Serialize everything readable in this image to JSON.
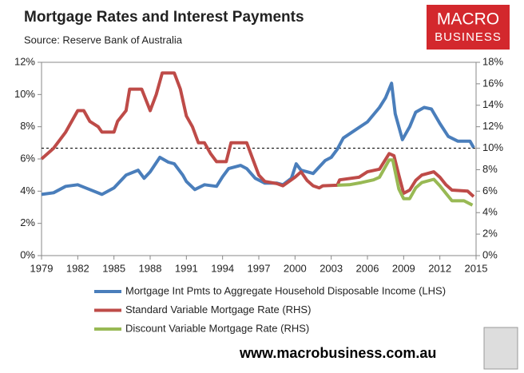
{
  "chart_data": {
    "type": "line",
    "title": "Mortgage Rates and Interest Payments",
    "subtitle": "Source: Reserve Bank of Australia",
    "logo": [
      "MACRO",
      "BUSINESS"
    ],
    "footer": "www.macrobusiness.com.au",
    "xlim": [
      1979,
      2015
    ],
    "xticks": [
      1979,
      1982,
      1985,
      1988,
      1991,
      1994,
      1997,
      2000,
      2003,
      2006,
      2009,
      2012,
      2015
    ],
    "ylim": [
      0,
      12
    ],
    "yticks": [
      {
        "value": 0,
        "label": "0%"
      },
      {
        "value": 2,
        "label": "2%"
      },
      {
        "value": 4,
        "label": "4%"
      },
      {
        "value": 6,
        "label": "6%"
      },
      {
        "value": 8,
        "label": "8%"
      },
      {
        "value": 10,
        "label": "10%"
      },
      {
        "value": 12,
        "label": "12%"
      }
    ],
    "y2lim": [
      0,
      18
    ],
    "y2ticks": [
      {
        "value": 0,
        "label": "0%"
      },
      {
        "value": 2,
        "label": "2%"
      },
      {
        "value": 4,
        "label": "4%"
      },
      {
        "value": 6,
        "label": "6%"
      },
      {
        "value": 8,
        "label": "8%"
      },
      {
        "value": 10,
        "label": "10%"
      },
      {
        "value": 12,
        "label": "12%"
      },
      {
        "value": 14,
        "label": "14%"
      },
      {
        "value": 16,
        "label": "16%"
      },
      {
        "value": 18,
        "label": "18%"
      }
    ],
    "reference_line": {
      "axis": "y2",
      "value": 10,
      "color": "#000000",
      "dashed": true
    },
    "legend": "bottom",
    "series": [
      {
        "name": "Mortgage Int Pmts to Aggregate Household Disposable Income (LHS)",
        "color": "#4a7ebb",
        "axis": "y",
        "x": [
          1979,
          1980,
          1981,
          1982,
          1983,
          1984,
          1985,
          1986,
          1987,
          1987.5,
          1988,
          1988.8,
          1989.5,
          1990,
          1990.7,
          1991,
          1991.7,
          1992.5,
          1993.5,
          1994,
          1994.5,
          1995.5,
          1996,
          1996.7,
          1997.5,
          1998.5,
          1999,
          1999.7,
          2000.1,
          2000.5,
          2001,
          2001.5,
          2002.5,
          2003,
          2003.5,
          2004,
          2005,
          2006,
          2007,
          2007.5,
          2008,
          2008.3,
          2008.9,
          2009.5,
          2010,
          2010.7,
          2011.3,
          2012,
          2012.7,
          2013.5,
          2014.5,
          2014.8
        ],
        "values": [
          3.8,
          3.9,
          4.3,
          4.4,
          4.1,
          3.8,
          4.2,
          5.0,
          5.3,
          4.8,
          5.2,
          6.1,
          5.8,
          5.7,
          5.0,
          4.6,
          4.1,
          4.4,
          4.3,
          4.9,
          5.4,
          5.6,
          5.4,
          4.8,
          4.5,
          4.5,
          4.4,
          4.8,
          5.7,
          5.3,
          5.2,
          5.1,
          5.9,
          6.1,
          6.6,
          7.3,
          7.8,
          8.3,
          9.2,
          9.8,
          10.7,
          8.8,
          7.2,
          8.0,
          8.9,
          9.2,
          9.1,
          8.2,
          7.4,
          7.1,
          7.1,
          6.7
        ]
      },
      {
        "name": "Standard Variable Mortgage Rate (RHS)",
        "color": "#be4b48",
        "axis": "y2",
        "x": [
          1979,
          1980,
          1981,
          1982,
          1982.5,
          1983,
          1983.7,
          1984,
          1985,
          1985.3,
          1986,
          1986.3,
          1987.3,
          1988,
          1988.5,
          1989,
          1990,
          1990.5,
          1991,
          1991.5,
          1992,
          1992.5,
          1993,
          1993.5,
          1994.3,
          1994.7,
          1996,
          1996.5,
          1997,
          1997.5,
          1998.5,
          1999,
          2000,
          2000.5,
          2001,
          2001.5,
          2002,
          2002.3,
          2003.5,
          2003.7,
          2005.3,
          2006,
          2007,
          2007.8,
          2008.2,
          2008.6,
          2009,
          2009.5,
          2010,
          2010.5,
          2011.5,
          2012,
          2012.5,
          2013,
          2014.3,
          2014.8
        ],
        "values": [
          9.0,
          10.0,
          11.5,
          13.5,
          13.5,
          12.5,
          12.0,
          11.5,
          11.5,
          12.5,
          13.5,
          15.5,
          15.5,
          13.5,
          15.0,
          17.0,
          17.0,
          15.5,
          13.0,
          12.0,
          10.5,
          10.5,
          9.5,
          8.75,
          8.75,
          10.5,
          10.5,
          9.0,
          7.5,
          6.9,
          6.7,
          6.5,
          7.3,
          7.8,
          7.0,
          6.5,
          6.3,
          6.5,
          6.55,
          7.05,
          7.3,
          7.8,
          8.05,
          9.5,
          9.3,
          7.5,
          5.8,
          6.1,
          7.0,
          7.5,
          7.8,
          7.3,
          6.6,
          6.1,
          6.0,
          5.5
        ]
      },
      {
        "name": "Discount Variable Mortgage Rate (RHS)",
        "color": "#98b954",
        "axis": "y2",
        "x": [
          2003.5,
          2004.5,
          2005.5,
          2006.5,
          2007,
          2007.8,
          2008.1,
          2008.6,
          2009,
          2009.5,
          2010,
          2010.5,
          2011.5,
          2012,
          2012.5,
          2013,
          2014,
          2014.7
        ],
        "values": [
          6.55,
          6.6,
          6.8,
          7.05,
          7.3,
          8.9,
          8.9,
          6.2,
          5.3,
          5.3,
          6.3,
          6.8,
          7.1,
          6.5,
          5.8,
          5.1,
          5.1,
          4.7
        ]
      }
    ]
  }
}
